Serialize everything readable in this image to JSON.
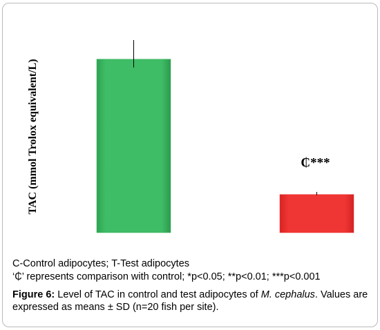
{
  "chart_data": {
    "type": "bar",
    "ylabel": "TAC (mmol Trolox equivalent/L)",
    "categories": [
      "",
      ""
    ],
    "values": [
      100,
      22
    ],
    "errors": [
      11,
      1.5
    ],
    "bar_colors": [
      "#3db864",
      "#ef3332"
    ],
    "ylim": [
      0,
      115
    ],
    "annotations": [
      "",
      "₵***"
    ],
    "grid": false
  },
  "notes": {
    "line1": "C-Control adipocytes; T-Test adipocytes",
    "line2": "‘₵’ represents comparison with control; *p<0.05; **p<0.01; ***p<0.001"
  },
  "caption": {
    "label": "Figure 6:",
    "text_before": " Level of TAC in control and test adipocytes of ",
    "species": "M. cephalus",
    "text_after": ". Values are expressed as means ± SD (n=20 fish per site)."
  }
}
